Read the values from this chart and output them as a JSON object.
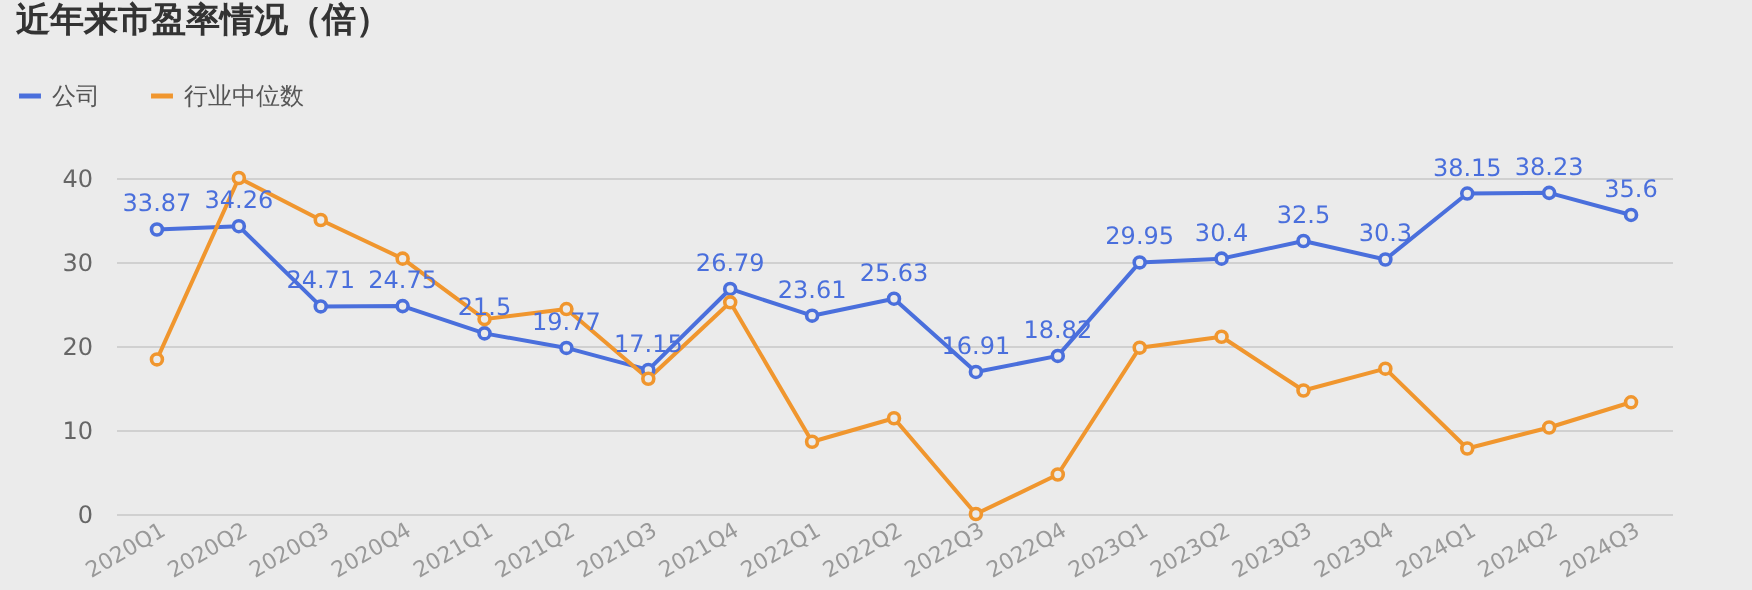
{
  "chart_data": {
    "type": "line",
    "title": "近年来市盈率情况（倍）",
    "categories": [
      "2020Q1",
      "2020Q2",
      "2020Q3",
      "2020Q4",
      "2021Q1",
      "2021Q2",
      "2021Q3",
      "2021Q4",
      "2022Q1",
      "2022Q2",
      "2022Q3",
      "2022Q4",
      "2023Q1",
      "2023Q2",
      "2023Q3",
      "2023Q4",
      "2024Q1",
      "2024Q2",
      "2024Q3"
    ],
    "series": [
      {
        "name": "公司",
        "color": "#4a6fdc",
        "values": [
          33.87,
          34.26,
          24.71,
          24.75,
          21.5,
          19.77,
          17.15,
          26.79,
          23.61,
          25.63,
          16.91,
          18.82,
          29.95,
          30.4,
          32.5,
          30.3,
          38.15,
          38.23,
          35.6
        ],
        "value_labels": [
          "33.87",
          "34.26",
          "24.71",
          "24.75",
          "21.5",
          "19.77",
          "17.15",
          "26.79",
          "23.61",
          "25.63",
          "16.91",
          "18.82",
          "29.95",
          "30.4",
          "32.5",
          "30.3",
          "38.15",
          "38.23",
          "35.6"
        ]
      },
      {
        "name": "行业中位数",
        "color": "#f0962e",
        "values": [
          18.4,
          40,
          35,
          30.4,
          23.2,
          24.4,
          16.1,
          25.2,
          8.6,
          11.4,
          0,
          4.7,
          19.8,
          21.1,
          14.7,
          17.3,
          7.8,
          10.3,
          13.3
        ]
      }
    ],
    "ylim": [
      0,
      40
    ],
    "yticks": [
      0,
      10,
      20,
      30,
      40
    ],
    "grid": "y",
    "legend": "top left",
    "marker": "circle",
    "line_style": "solid"
  }
}
